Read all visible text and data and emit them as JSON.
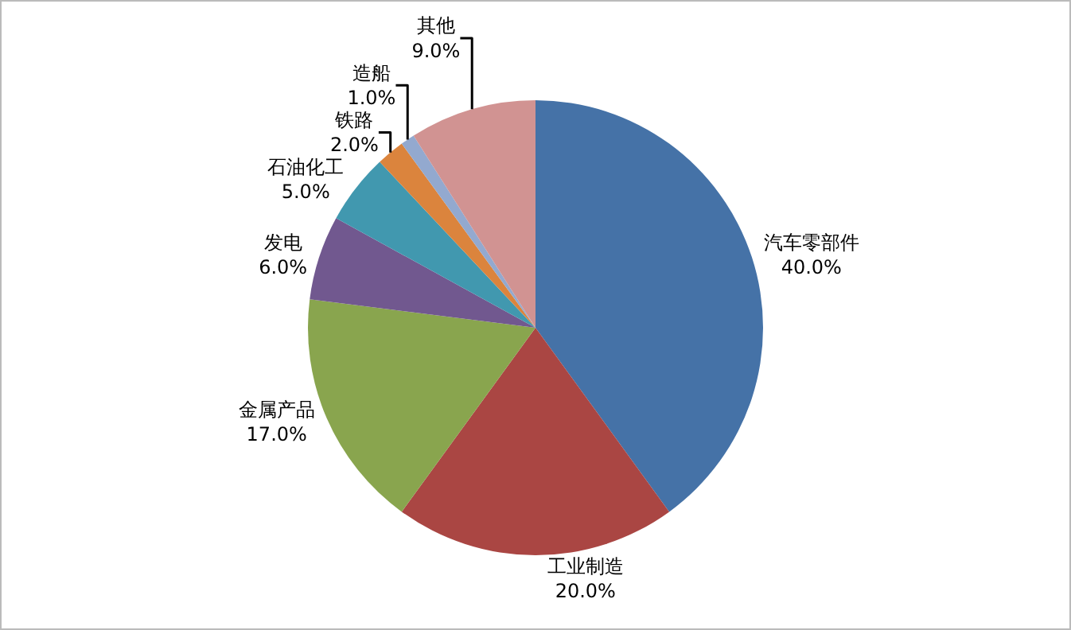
{
  "chart_data": {
    "type": "pie",
    "categories": [
      "汽车零部件",
      "工业制造",
      "金属产品",
      "发电",
      "石油化工",
      "铁路",
      "造船",
      "其他"
    ],
    "values": [
      40,
      20,
      17,
      6,
      5,
      2,
      1,
      9
    ],
    "value_labels": [
      "40.0%",
      "20.0%",
      "17.0%",
      "6.0%",
      "5.0%",
      "2.0%",
      "1.0%",
      "9.0%"
    ],
    "colors": [
      "#4572a7",
      "#aa4643",
      "#89a54e",
      "#71588f",
      "#4198af",
      "#db843d",
      "#93a9cf",
      "#d19392"
    ],
    "legend": false
  }
}
